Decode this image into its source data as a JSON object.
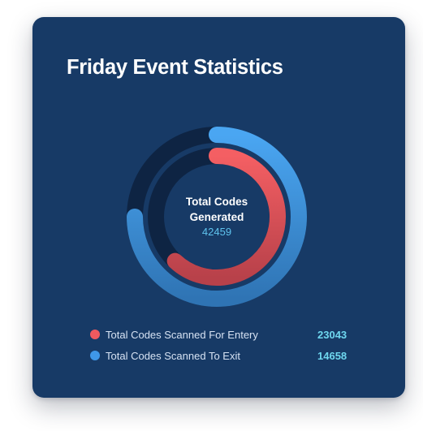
{
  "card": {
    "title": "Friday Event Statistics"
  },
  "center": {
    "label": "Total Codes Generated",
    "total": "42459"
  },
  "legend": [
    {
      "label": "Total Codes Scanned For Entery",
      "value": "23043",
      "color": "#ef5a5f"
    },
    {
      "label": "Total Codes Scanned To Exit",
      "value": "14658",
      "color": "#3f97e8"
    }
  ],
  "colors": {
    "card_background": "#173a66",
    "track": "#0e2443",
    "entry_ring": "#ef5a5f",
    "exit_ring": "#3f97e8",
    "total_value": "#5fc3ee",
    "legend_value": "#6fd7ef"
  },
  "chart_data": {
    "type": "radial_bar",
    "total": 42459,
    "series": [
      {
        "name": "Total Codes Scanned For Entery",
        "value": 23043,
        "color": "#ef5a5f"
      },
      {
        "name": "Total Codes Scanned To Exit",
        "value": 14658,
        "color": "#3f97e8"
      }
    ]
  }
}
